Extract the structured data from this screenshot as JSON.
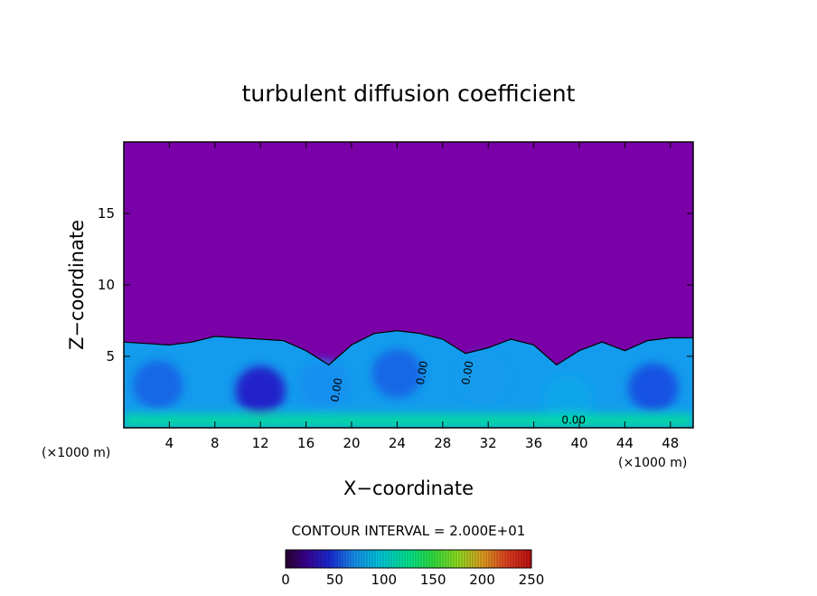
{
  "chart_data": {
    "type": "heatmap",
    "title": "turbulent diffusion coefficient",
    "xlabel": "X−coordinate",
    "ylabel": "Z−coordinate",
    "x_unit": "(×1000 m)",
    "x_unit_right": "(×1000 m)",
    "xlim": [
      0,
      50
    ],
    "ylim": [
      0,
      20
    ],
    "x_ticks": [
      4,
      8,
      12,
      16,
      20,
      24,
      28,
      32,
      36,
      40,
      44,
      48
    ],
    "x_tick_labels": [
      "4",
      "8",
      "12",
      "16",
      "20",
      "24",
      "28",
      "32",
      "36",
      "40",
      "44",
      "48"
    ],
    "y_ticks": [
      5,
      10,
      15
    ],
    "y_tick_labels": [
      "5",
      "10",
      "15"
    ],
    "contour_interval_text": "CONTOUR INTERVAL = 2.000E+01",
    "contour_labels": [
      "0.00",
      "0.00",
      "0.00",
      "0.00"
    ],
    "colorbar": {
      "min": 0,
      "max": 250,
      "ticks": [
        0,
        50,
        100,
        150,
        200,
        250
      ],
      "tick_labels": [
        "0",
        "50",
        "100",
        "150",
        "200",
        "250"
      ],
      "stops": [
        [
          0,
          "#2a0030"
        ],
        [
          20,
          "#3a0090"
        ],
        [
          45,
          "#1a2ad8"
        ],
        [
          70,
          "#1890f0"
        ],
        [
          95,
          "#00c8e0"
        ],
        [
          125,
          "#00e890"
        ],
        [
          150,
          "#30e040"
        ],
        [
          175,
          "#90e020"
        ],
        [
          200,
          "#e0a020"
        ],
        [
          225,
          "#e04020"
        ],
        [
          250,
          "#c01010"
        ]
      ]
    },
    "colors": {
      "background_field": "#7a00a8",
      "frame": "#000000"
    },
    "boundary_layer_top_z": [
      6.0,
      5.9,
      5.8,
      6.0,
      6.4,
      6.3,
      6.2,
      6.1,
      5.4,
      4.4,
      5.8,
      6.6,
      6.8,
      6.6,
      6.2,
      5.2,
      5.6,
      6.2,
      5.8,
      4.4,
      5.4,
      6.0,
      5.4,
      6.1,
      6.3,
      6.3
    ],
    "cells": [
      {
        "x": 3.0,
        "z": 3.0,
        "value": 60
      },
      {
        "x": 12.0,
        "z": 2.6,
        "value": 40
      },
      {
        "x": 17.5,
        "z": 3.0,
        "value": 70
      },
      {
        "x": 24.0,
        "z": 3.8,
        "value": 60
      },
      {
        "x": 31.5,
        "z": 3.5,
        "value": 75
      },
      {
        "x": 39.0,
        "z": 2.0,
        "value": 80
      },
      {
        "x": 46.5,
        "z": 2.8,
        "value": 55
      }
    ]
  }
}
